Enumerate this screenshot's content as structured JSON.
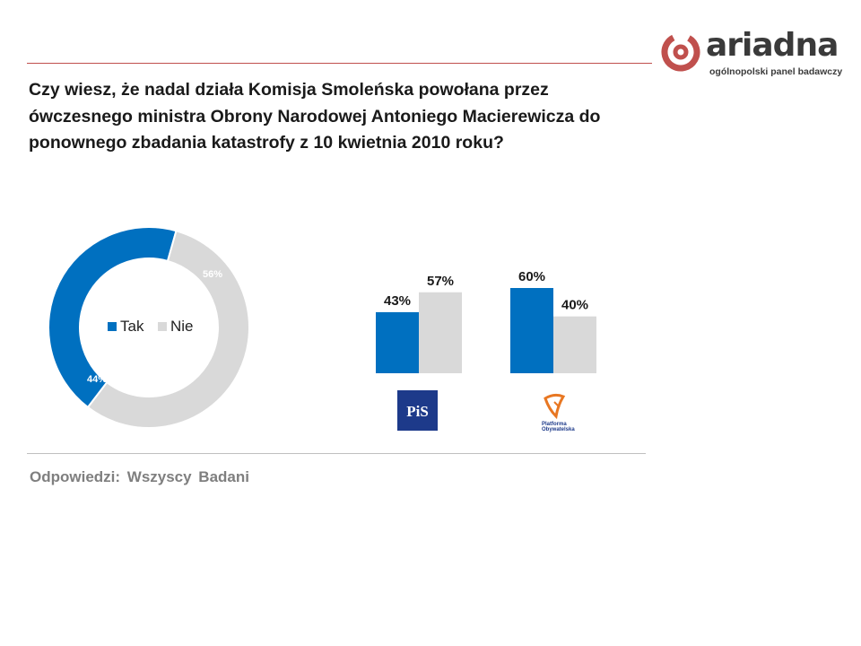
{
  "header": {
    "logo_word": "ariadna",
    "logo_tagline": "ogólnopolski panel badawczy"
  },
  "question": "Czy wiesz, że nadal działa Komisja Smoleńska powołana przez ówczesnego ministra Obrony Narodowej Antoniego Macierewicza do ponownego zbadania katastrofy z 10 kwietnia 2010 roku?",
  "footnote": "Odpowiedzi: Wszyscy Badani",
  "colors": {
    "accent": "#c0504d",
    "tak": "#0070c0",
    "nie": "#d9d9d9"
  },
  "parties": {
    "pis": {
      "icon": "pis-logo",
      "logo_text": "PiS"
    },
    "po": {
      "icon": "po-logo",
      "logo_text": "Platforma Obywatelska"
    }
  },
  "chart_data": [
    {
      "type": "pie",
      "variant": "donut",
      "title": "",
      "categories": [
        "Tak",
        "Nie"
      ],
      "values": [
        44,
        56
      ],
      "value_labels": [
        "44%",
        "56%"
      ],
      "legend": {
        "entries": [
          "Tak",
          "Nie"
        ],
        "placement": "center"
      }
    },
    {
      "type": "bar",
      "title": "",
      "categories": [
        "PiS",
        "Platforma Obywatelska"
      ],
      "series": [
        {
          "name": "Tak",
          "values": [
            43,
            60
          ],
          "labels": [
            "43%",
            "60%"
          ]
        },
        {
          "name": "Nie",
          "values": [
            57,
            40
          ],
          "labels": [
            "57%",
            "40%"
          ]
        }
      ],
      "ylim": [
        0,
        100
      ],
      "grid": false
    }
  ]
}
